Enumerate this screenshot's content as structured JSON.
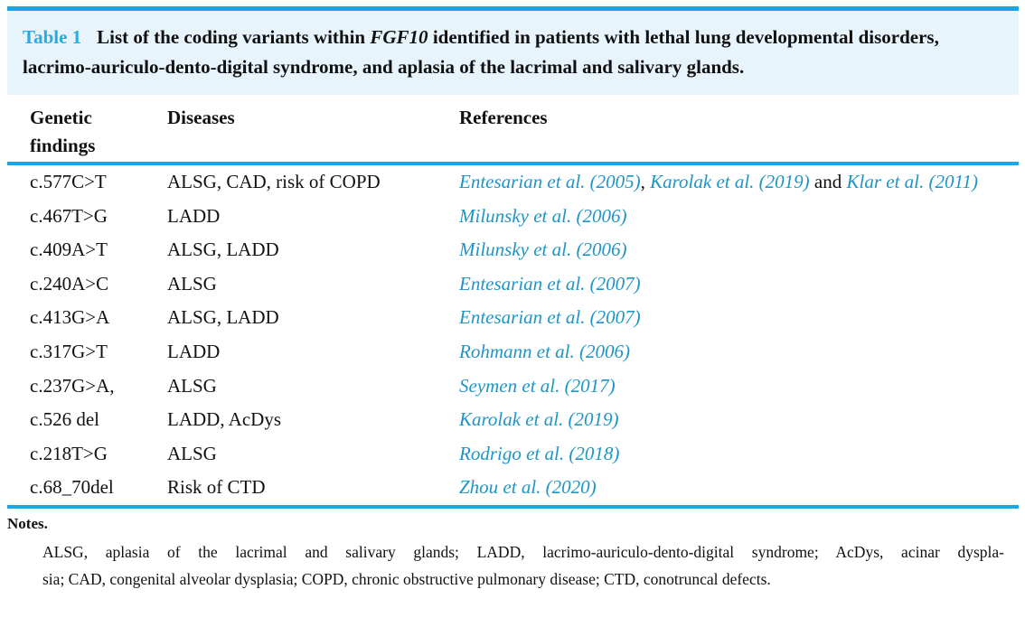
{
  "colors": {
    "accent": "#1ba6e8",
    "label": "#29abe2",
    "band": "#e8f4fb",
    "link": "#2095c5",
    "text": "#111111"
  },
  "caption": {
    "label": "Table 1",
    "text_before_gene": "List of the coding variants within ",
    "gene": "FGF10",
    "text_after_gene": " identified in patients with lethal lung developmental disorders, lacrimo-auriculo-dento-digital syndrome, and aplasia of the lacrimal and salivary glands."
  },
  "table": {
    "headers": [
      "Genetic findings",
      "Diseases",
      "References"
    ],
    "rows": [
      {
        "genetic": "c.577C>T",
        "diseases": "ALSG, CAD, risk of COPD",
        "references": [
          {
            "text": "Entesarian et al. (2005)",
            "link": true
          },
          {
            "text": ", ",
            "link": false
          },
          {
            "text": "Karolak et al. (2019)",
            "link": true
          },
          {
            "text": " and ",
            "link": false
          },
          {
            "text": "Klar et al. (2011)",
            "link": true
          }
        ]
      },
      {
        "genetic": "c.467T>G",
        "diseases": "LADD",
        "references": [
          {
            "text": "Milunsky et al. (2006)",
            "link": true
          }
        ]
      },
      {
        "genetic": "c.409A>T",
        "diseases": "ALSG, LADD",
        "references": [
          {
            "text": "Milunsky et al. (2006)",
            "link": true
          }
        ]
      },
      {
        "genetic": "c.240A>C",
        "diseases": "ALSG",
        "references": [
          {
            "text": "Entesarian et al. (2007)",
            "link": true
          }
        ]
      },
      {
        "genetic": "c.413G>A",
        "diseases": "ALSG, LADD",
        "references": [
          {
            "text": "Entesarian et al. (2007)",
            "link": true
          }
        ]
      },
      {
        "genetic": "c.317G>T",
        "diseases": "LADD",
        "references": [
          {
            "text": "Rohmann et al. (2006)",
            "link": true
          }
        ]
      },
      {
        "genetic": "c.237G>A,",
        "diseases": "ALSG",
        "references": [
          {
            "text": "Seymen et al. (2017)",
            "link": true
          }
        ]
      },
      {
        "genetic": "c.526 del",
        "diseases": "LADD, AcDys",
        "references": [
          {
            "text": "Karolak et al. (2019)",
            "link": true
          }
        ]
      },
      {
        "genetic": "c.218T>G",
        "diseases": "ALSG",
        "references": [
          {
            "text": "Rodrigo et al. (2018)",
            "link": true
          }
        ]
      },
      {
        "genetic": "c.68_70del",
        "diseases": "Risk of CTD",
        "references": [
          {
            "text": "Zhou et al. (2020)",
            "link": true
          }
        ]
      }
    ]
  },
  "notes": {
    "heading": "Notes.",
    "lines": [
      "ALSG, aplasia of the lacrimal and salivary glands; LADD, lacrimo-auriculo-dento-digital syndrome; AcDys, acinar dyspla-",
      "sia; CAD, congenital alveolar dysplasia; COPD, chronic obstructive pulmonary disease; CTD, conotruncal defects."
    ]
  }
}
